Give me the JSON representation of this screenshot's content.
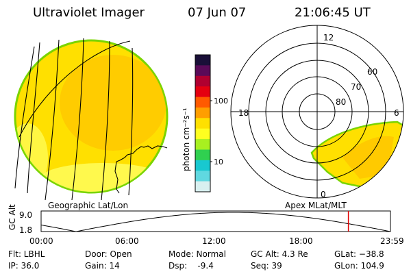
{
  "header": {
    "instrument": "Ultraviolet Imager",
    "date": "07 Jun 07",
    "time": "21:06:45 UT"
  },
  "colorbar": {
    "unit_label": "photon cm⁻²s⁻¹",
    "tick_100": "100",
    "tick_10": "10",
    "scale": "log",
    "colors_top_to_bottom": [
      "#1a0f38",
      "#5a0a58",
      "#b00030",
      "#e40010",
      "#ff5a00",
      "#ff9e00",
      "#ffe000",
      "#ffff20",
      "#a8f020",
      "#30d050",
      "#18c8d0",
      "#60d8e0",
      "#d8f0f0"
    ]
  },
  "geo_panel": {
    "label": "Geographic Lat/Lon",
    "disk_color": "#ffe000",
    "bright_color": "#ffc800",
    "limb_color": "#7ad400"
  },
  "polar_panel": {
    "label": "Apex MLat/MLT",
    "mlt_labels": {
      "top": "12",
      "left": "18",
      "right": "6",
      "bottom": "0"
    },
    "lat_labels": [
      "60",
      "70",
      "80"
    ]
  },
  "orbit_plot": {
    "ylabel": "GC Alt",
    "ytick_top": "9.0",
    "ytick_bottom": "1.8",
    "xticks": [
      "00:00",
      "06:00",
      "12:00",
      "18:00",
      "23:59"
    ],
    "current_time_hours": 21.11,
    "marker_color": "#e00000"
  },
  "status": {
    "flt": "Flt: LBHL",
    "ip": "IP: 36.0",
    "door": "Door: Open",
    "gain": "Gain: 14",
    "mode": "Mode: Normal",
    "dsp": "Dsp:    -9.4",
    "gc_alt": "GC Alt: 4.3 Re",
    "seq": "Seq: 39",
    "glat": "GLat: −38.8",
    "glon": "GLon: 104.9"
  }
}
